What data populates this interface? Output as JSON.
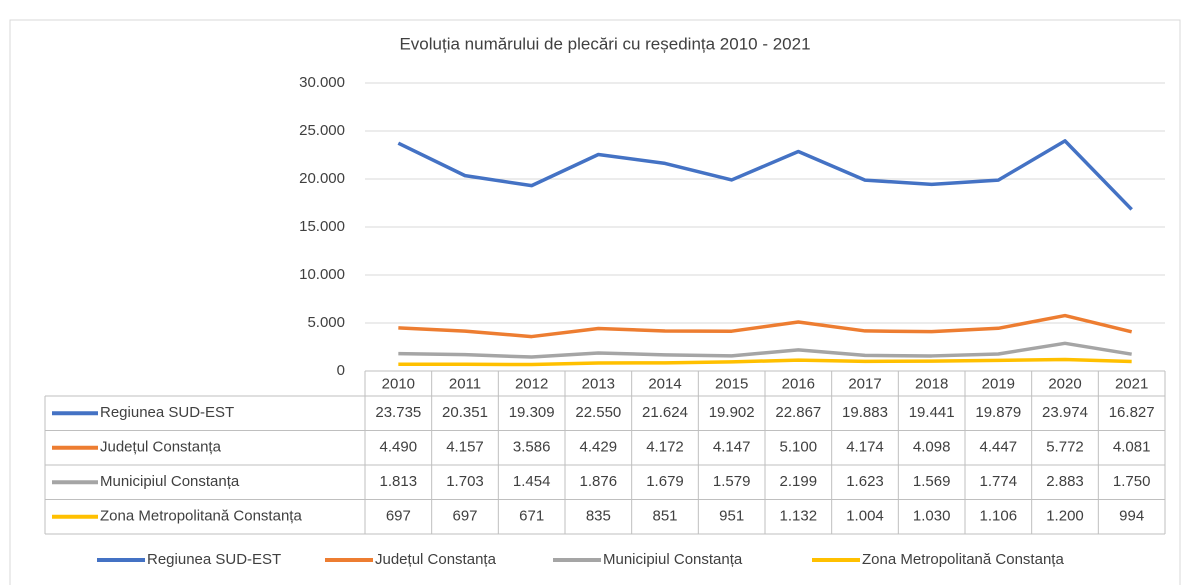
{
  "chart_data": {
    "type": "line",
    "title": "Evoluția numărului de plecări cu reședința 2010 - 2021",
    "categories": [
      "2010",
      "2011",
      "2012",
      "2013",
      "2014",
      "2015",
      "2016",
      "2017",
      "2018",
      "2019",
      "2020",
      "2021"
    ],
    "ylim": [
      0,
      30000
    ],
    "yticks": [
      0,
      {
        "value": 5000,
        "label": "5.000"
      },
      {
        "value": 10000,
        "label": "10.000"
      },
      {
        "value": 15000,
        "label": "15.000"
      },
      {
        "value": 20000,
        "label": "20.000"
      },
      {
        "value": 25000,
        "label": "25.000"
      },
      {
        "value": 30000,
        "label": "30.000"
      }
    ],
    "series": [
      {
        "name": "Regiunea SUD-EST",
        "color": "#4472c4",
        "values": [
          23735,
          20351,
          19309,
          22550,
          21624,
          19902,
          22867,
          19883,
          19441,
          19879,
          23974,
          16827
        ],
        "value_labels": [
          "23.735",
          "20.351",
          "19.309",
          "22.550",
          "21.624",
          "19.902",
          "22.867",
          "19.883",
          "19.441",
          "19.879",
          "23.974",
          "16.827"
        ]
      },
      {
        "name": "Județul Constanța",
        "color": "#ed7d31",
        "values": [
          4490,
          4157,
          3586,
          4429,
          4172,
          4147,
          5100,
          4174,
          4098,
          4447,
          5772,
          4081
        ],
        "value_labels": [
          "4.490",
          "4.157",
          "3.586",
          "4.429",
          "4.172",
          "4.147",
          "5.100",
          "4.174",
          "4.098",
          "4.447",
          "5.772",
          "4.081"
        ]
      },
      {
        "name": "Municipiul Constanța",
        "color": "#a5a5a5",
        "values": [
          1813,
          1703,
          1454,
          1876,
          1679,
          1579,
          2199,
          1623,
          1569,
          1774,
          2883,
          1750
        ],
        "value_labels": [
          "1.813",
          "1.703",
          "1.454",
          "1.876",
          "1.679",
          "1.579",
          "2.199",
          "1.623",
          "1.569",
          "1.774",
          "2.883",
          "1.750"
        ]
      },
      {
        "name": "Zona Metropolitană Constanța",
        "color": "#ffc000",
        "values": [
          697,
          697,
          671,
          835,
          851,
          951,
          1132,
          1004,
          1030,
          1106,
          1200,
          994
        ],
        "value_labels": [
          "697",
          "697",
          "671",
          "835",
          "851",
          "951",
          "1.132",
          "1.004",
          "1.030",
          "1.106",
          "1.200",
          "994"
        ]
      }
    ]
  }
}
